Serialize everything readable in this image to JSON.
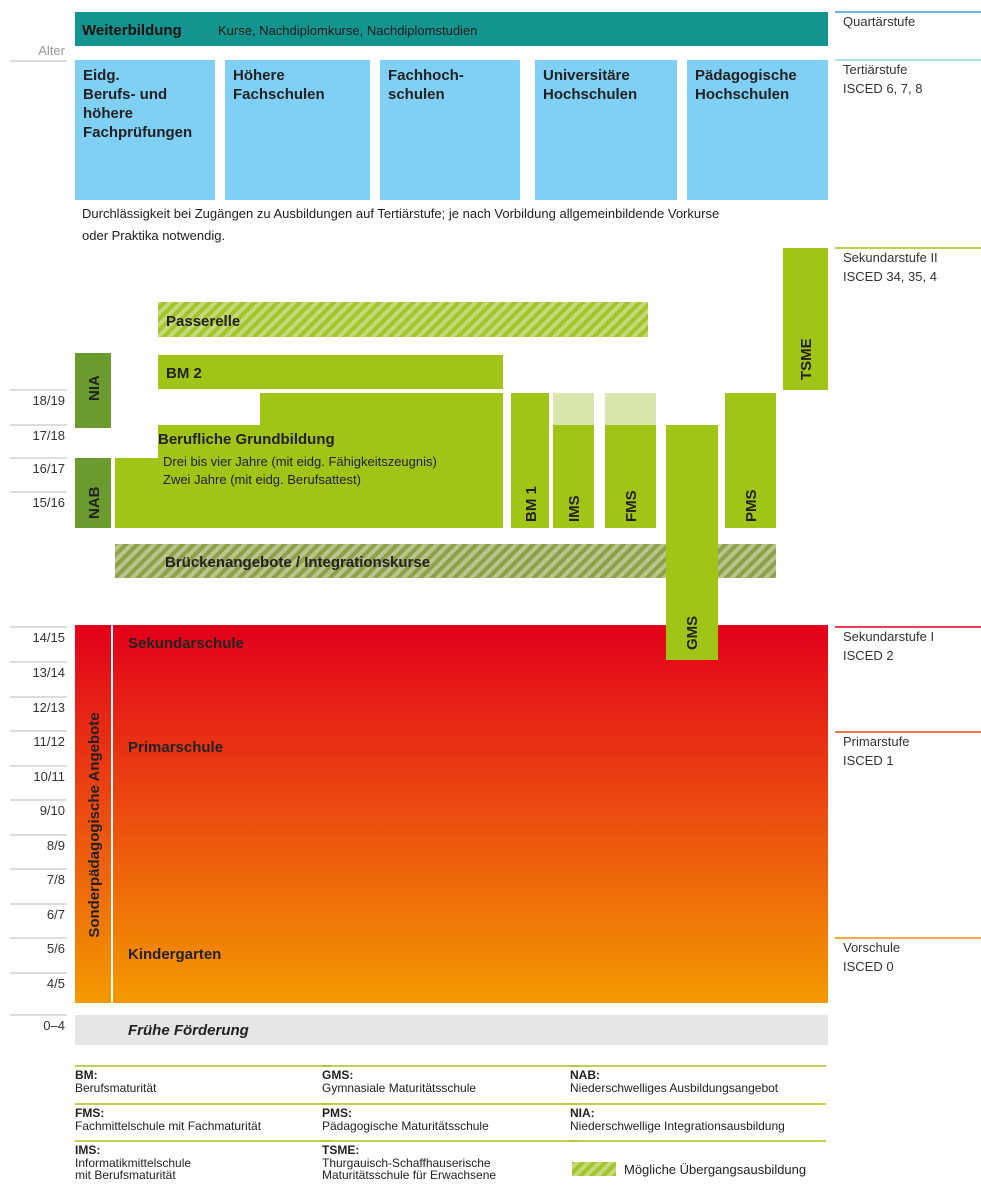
{
  "age_label": "Alter",
  "ages_upper": [
    "18/19",
    "17/18",
    "16/17",
    "15/16"
  ],
  "ages_lower": [
    "14/15",
    "13/14",
    "12/13",
    "11/12",
    "10/11",
    "9/10",
    "8/9",
    "7/8",
    "6/7",
    "5/6",
    "4/5",
    "0–4"
  ],
  "levels": [
    {
      "name": "Quartärstufe",
      "color": "#3c9fd6"
    },
    {
      "name": "Tertiärstufe",
      "isced": "ISCED 6, 7, 8",
      "color": "#8fd3f5"
    },
    {
      "name": "Sekundarstufe II",
      "isced": "ISCED 34, 35, 4",
      "color": "#a0c517"
    },
    {
      "name": "Sekundarstufe I",
      "isced": "ISCED 2",
      "color": "#e2001a"
    },
    {
      "name": "Primarstufe",
      "isced": "ISCED 1",
      "color": "#eb4a12"
    },
    {
      "name": "Vorschule",
      "isced": "ISCED 0",
      "color": "#f39200"
    }
  ],
  "weiterbildung": {
    "title": "Weiterbildung",
    "subtitle": "Kurse, Nachdiplomkurse, Nachdiplomstudien"
  },
  "tertiary": [
    {
      "lines": [
        "Eidg.",
        "Berufs- und",
        "höhere",
        "Fachprüfungen"
      ]
    },
    {
      "lines": [
        "Höhere",
        "Fachschulen"
      ]
    },
    {
      "lines": [
        "Fachhoch-",
        "schulen"
      ]
    },
    {
      "lines": [
        "Universitäre",
        "Hochschulen"
      ]
    },
    {
      "lines": [
        "Pädagogische",
        "Hochschulen"
      ]
    }
  ],
  "note": [
    "Durchlässigkeit bei Zugängen zu Ausbildungen auf Tertiärstufe; je nach Vorbildung allgemeinbildende Vorkurse",
    "oder Praktika notwendig."
  ],
  "secondary": {
    "passerelle": "Passerelle",
    "bm2": "BM 2",
    "nia": "NIA",
    "nab": "NAB",
    "grundbildung": {
      "title": "Berufliche Grundbildung",
      "lines": [
        "Drei bis vier Jahre (mit eidg. Fähigkeitszeugnis)",
        "Zwei Jahre (mit eidg. Berufsattest)"
      ]
    },
    "bm1": "BM 1",
    "ims": "IMS",
    "fms": "FMS",
    "gms": "GMS",
    "pms": "PMS",
    "tsme": "TSME",
    "bruecke": "Brückenangebote / Integrationskurse"
  },
  "compulsory": {
    "sonder": "Sonderpädagogische Angebote",
    "sekundarschule": "Sekundarschule",
    "primarschule": "Primarschule",
    "kindergarten": "Kindergarten",
    "fruehe": "Frühe Förderung"
  },
  "legend": {
    "columns": [
      [
        {
          "abbr": "BM:",
          "lines": [
            "Berufsmaturität"
          ]
        },
        {
          "abbr": "FMS:",
          "lines": [
            "Fachmittelschule mit Fachmaturität"
          ]
        },
        {
          "abbr": "IMS:",
          "lines": [
            "Informatikmittelschule",
            "mit Berufsmaturität"
          ]
        }
      ],
      [
        {
          "abbr": "GMS:",
          "lines": [
            "Gymnasiale Maturitätsschule"
          ]
        },
        {
          "abbr": "PMS:",
          "lines": [
            "Pädagogische Maturitätsschule"
          ]
        },
        {
          "abbr": "TSME:",
          "lines": [
            "Thurgauisch-Schaffhauserische",
            "Maturitätsschule für Erwachsene"
          ]
        }
      ],
      [
        {
          "abbr": "NAB:",
          "lines": [
            "Niederschwelliges Ausbildungsangebot"
          ]
        },
        {
          "abbr": "NIA:",
          "lines": [
            "Niederschwellige Integrationsausbildung"
          ]
        }
      ]
    ],
    "hatch": "Mögliche Übergangsausbildung"
  }
}
